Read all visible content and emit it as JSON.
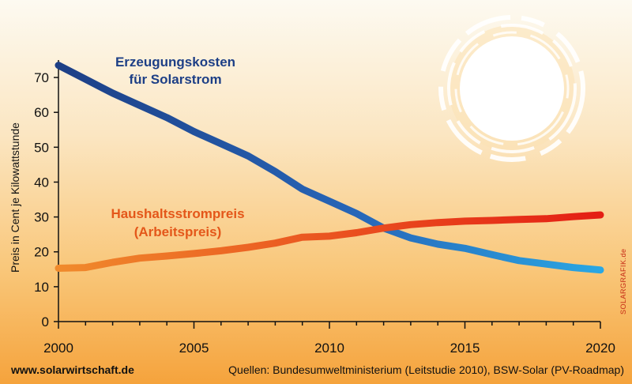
{
  "chart_data": {
    "type": "line",
    "title": "",
    "ylabel": "Preis in Cent je Kilowattstunde",
    "xlabel": "",
    "xlim": [
      2000,
      2020
    ],
    "ylim": [
      0,
      75
    ],
    "x_ticks": [
      "2000",
      "2005",
      "2010",
      "2015",
      "2020"
    ],
    "y_ticks": [
      "0",
      "10",
      "20",
      "30",
      "40",
      "50",
      "60",
      "70"
    ],
    "grid": false,
    "x": [
      2000,
      2001,
      2002,
      2003,
      2004,
      2005,
      2006,
      2007,
      2008,
      2009,
      2010,
      2011,
      2012,
      2013,
      2014,
      2015,
      2016,
      2017,
      2018,
      2019,
      2020
    ],
    "series": [
      {
        "name": "Erzeugungskosten für Solarstrom",
        "label_lines": [
          "Erzeugungskosten",
          "für Solarstrom"
        ],
        "color_start": "#1d3f86",
        "color_end": "#2aa7e3",
        "values": [
          73.5,
          69.5,
          65.5,
          62,
          58.5,
          54.5,
          51,
          47.5,
          43,
          38,
          34.5,
          31,
          26.8,
          24,
          22.2,
          21,
          19.2,
          17.5,
          16.5,
          15.5,
          14.8
        ]
      },
      {
        "name": "Haushaltsstrompreis (Arbeitspreis)",
        "label_lines": [
          "Haushaltsstrompreis",
          "(Arbeitspreis)"
        ],
        "color_start": "#f08a2c",
        "color_end": "#e41e14",
        "values": [
          15.3,
          15.5,
          17,
          18.2,
          18.8,
          19.5,
          20.3,
          21.3,
          22.5,
          24.2,
          24.5,
          25.5,
          26.8,
          27.8,
          28.4,
          28.8,
          29,
          29.3,
          29.5,
          30.1,
          30.6
        ]
      }
    ],
    "legend": "inline labels"
  },
  "footer": {
    "website": "www.solarwirtschaft.de",
    "sources": "Quellen: Bundesumweltministerium (Leitstudie 2010), BSW-Solar (PV-Roadmap)"
  },
  "credit": "SOLARGRAFIK.de",
  "sun_icon": "sun-icon"
}
